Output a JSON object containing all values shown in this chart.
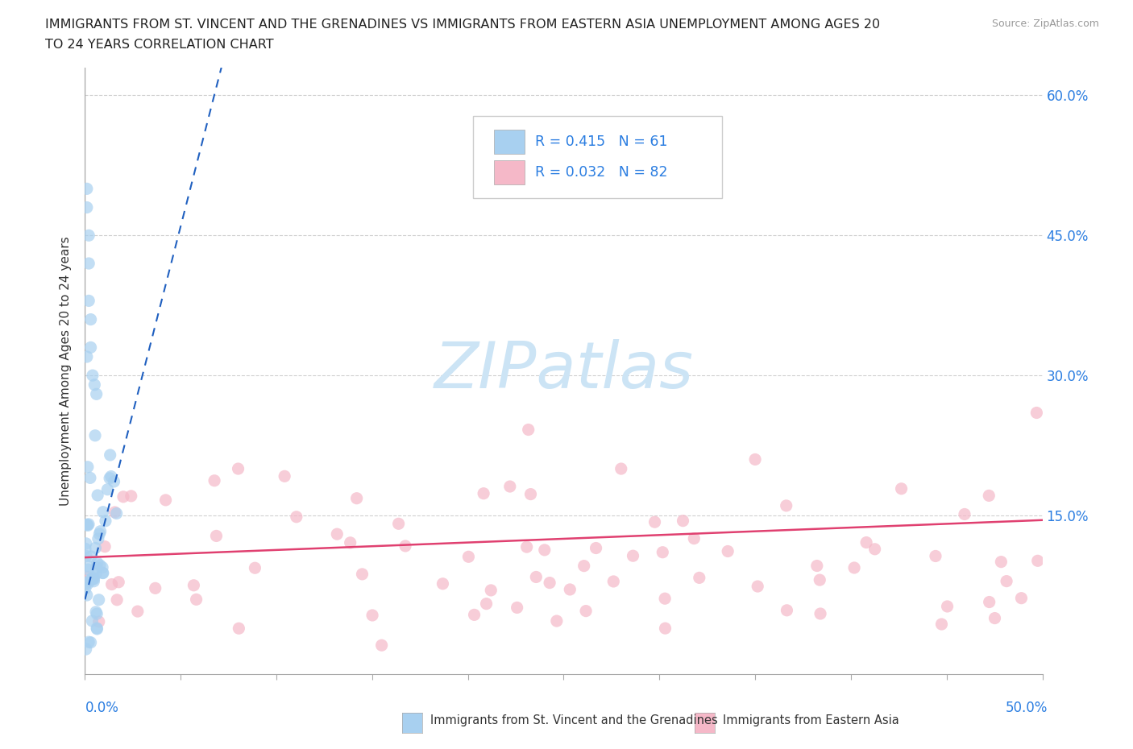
{
  "title_line1": "IMMIGRANTS FROM ST. VINCENT AND THE GRENADINES VS IMMIGRANTS FROM EASTERN ASIA UNEMPLOYMENT AMONG AGES 20",
  "title_line2": "TO 24 YEARS CORRELATION CHART",
  "source": "Source: ZipAtlas.com",
  "ylabel": "Unemployment Among Ages 20 to 24 years",
  "xlim": [
    0,
    0.5
  ],
  "ylim": [
    -0.02,
    0.63
  ],
  "series1_color": "#a8d0f0",
  "series2_color": "#f5b8c8",
  "trendline1_color": "#2060c0",
  "trendline2_color": "#e04070",
  "watermark_color": "#cce4f5",
  "background_color": "#ffffff",
  "series1_label": "Immigrants from St. Vincent and the Grenadines",
  "series2_label": "Immigrants from Eastern Asia",
  "legend_text1": "R = 0.415   N = 61",
  "legend_text2": "R = 0.032   N = 82",
  "ytick_positions": [
    0.0,
    0.15,
    0.3,
    0.45,
    0.6
  ],
  "ytick_labels": [
    "",
    "15.0%",
    "30.0%",
    "45.0%",
    "60.0%"
  ],
  "grid_color": "#d0d0d0",
  "axis_color": "#aaaaaa"
}
